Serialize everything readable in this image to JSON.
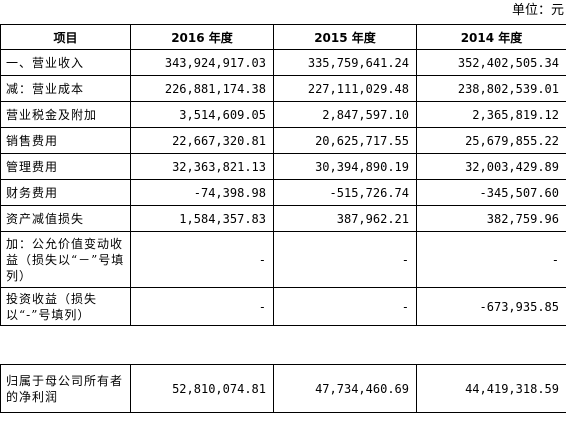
{
  "unit_label": "单位：元",
  "table": {
    "headers": [
      "项目",
      "2016 年度",
      "2015 年度",
      "2014 年度"
    ],
    "rows": [
      {
        "label": "一、营业收入",
        "values": [
          "343,924,917.03",
          "335,759,641.24",
          "352,402,505.34"
        ]
      },
      {
        "label": "减：营业成本",
        "values": [
          "226,881,174.38",
          "227,111,029.48",
          "238,802,539.01"
        ]
      },
      {
        "label": "营业税金及附加",
        "values": [
          "3,514,609.05",
          "2,847,597.10",
          "2,365,819.12"
        ]
      },
      {
        "label": "销售费用",
        "values": [
          "22,667,320.81",
          "20,625,717.55",
          "25,679,855.22"
        ]
      },
      {
        "label": "管理费用",
        "values": [
          "32,363,821.13",
          "30,394,890.19",
          "32,003,429.89"
        ]
      },
      {
        "label": "财务费用",
        "values": [
          "-74,398.98",
          "-515,726.74",
          "-345,507.60"
        ]
      },
      {
        "label": "资产减值损失",
        "values": [
          "1,584,357.83",
          "387,962.21",
          "382,759.96"
        ]
      },
      {
        "label": "加：公允价值变动收益（损失以“－”号填列）",
        "values": [
          "-",
          "-",
          "-"
        ]
      },
      {
        "label": "投资收益（损失以“-”号填列）",
        "values": [
          "-",
          "-",
          "-673,935.85"
        ]
      }
    ]
  },
  "table2": {
    "rows": [
      {
        "label": "归属于母公司所有者的净利润",
        "values": [
          "52,810,074.81",
          "47,734,460.69",
          "44,419,318.59"
        ]
      }
    ]
  }
}
